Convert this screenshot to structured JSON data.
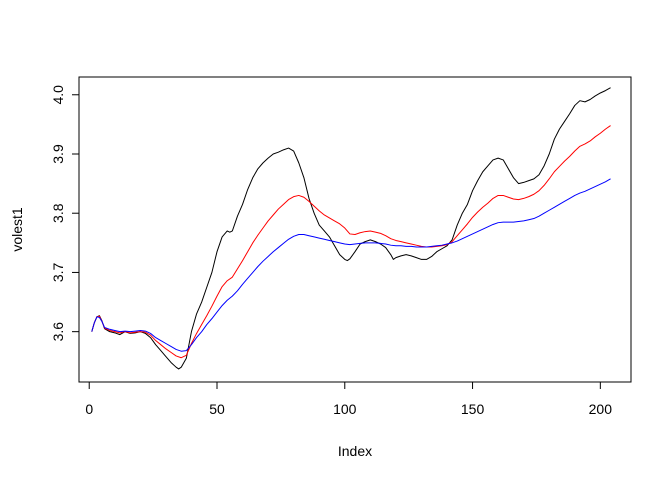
{
  "chart_data": {
    "type": "line",
    "title": "",
    "xlabel": "Index",
    "ylabel": "volest1",
    "xlim": [
      -4,
      212
    ],
    "ylim": [
      3.515,
      4.03
    ],
    "x_ticks": [
      0,
      50,
      100,
      150,
      200
    ],
    "x_tick_labels": [
      "0",
      "50",
      "100",
      "150",
      "200"
    ],
    "y_ticks": [
      3.6,
      3.7,
      3.8,
      3.9,
      4.0
    ],
    "y_tick_labels": [
      "3.6",
      "3.7",
      "3.8",
      "3.9",
      "4.0"
    ],
    "grid": false,
    "legend": "none",
    "series": [
      {
        "color": "#000000",
        "points": [
          [
            1,
            3.6
          ],
          [
            2,
            3.615
          ],
          [
            3,
            3.625
          ],
          [
            4,
            3.627
          ],
          [
            5,
            3.618
          ],
          [
            6,
            3.605
          ],
          [
            8,
            3.6
          ],
          [
            10,
            3.598
          ],
          [
            12,
            3.595
          ],
          [
            14,
            3.6
          ],
          [
            16,
            3.597
          ],
          [
            18,
            3.598
          ],
          [
            20,
            3.6
          ],
          [
            22,
            3.597
          ],
          [
            24,
            3.59
          ],
          [
            26,
            3.578
          ],
          [
            28,
            3.568
          ],
          [
            30,
            3.558
          ],
          [
            32,
            3.548
          ],
          [
            34,
            3.54
          ],
          [
            35,
            3.537
          ],
          [
            36,
            3.54
          ],
          [
            38,
            3.555
          ],
          [
            40,
            3.6
          ],
          [
            42,
            3.63
          ],
          [
            44,
            3.65
          ],
          [
            46,
            3.675
          ],
          [
            48,
            3.7
          ],
          [
            50,
            3.735
          ],
          [
            52,
            3.76
          ],
          [
            54,
            3.77
          ],
          [
            55,
            3.768
          ],
          [
            56,
            3.77
          ],
          [
            58,
            3.795
          ],
          [
            60,
            3.815
          ],
          [
            62,
            3.84
          ],
          [
            64,
            3.86
          ],
          [
            66,
            3.875
          ],
          [
            68,
            3.885
          ],
          [
            70,
            3.893
          ],
          [
            72,
            3.9
          ],
          [
            74,
            3.903
          ],
          [
            76,
            3.907
          ],
          [
            78,
            3.91
          ],
          [
            80,
            3.905
          ],
          [
            82,
            3.885
          ],
          [
            84,
            3.86
          ],
          [
            86,
            3.825
          ],
          [
            88,
            3.8
          ],
          [
            90,
            3.78
          ],
          [
            92,
            3.77
          ],
          [
            94,
            3.76
          ],
          [
            96,
            3.745
          ],
          [
            98,
            3.73
          ],
          [
            100,
            3.722
          ],
          [
            101,
            3.72
          ],
          [
            102,
            3.723
          ],
          [
            104,
            3.735
          ],
          [
            106,
            3.748
          ],
          [
            108,
            3.752
          ],
          [
            110,
            3.755
          ],
          [
            112,
            3.752
          ],
          [
            114,
            3.748
          ],
          [
            116,
            3.742
          ],
          [
            118,
            3.73
          ],
          [
            119,
            3.722
          ],
          [
            120,
            3.725
          ],
          [
            122,
            3.728
          ],
          [
            124,
            3.73
          ],
          [
            126,
            3.728
          ],
          [
            128,
            3.725
          ],
          [
            130,
            3.722
          ],
          [
            132,
            3.722
          ],
          [
            134,
            3.727
          ],
          [
            136,
            3.735
          ],
          [
            138,
            3.74
          ],
          [
            140,
            3.745
          ],
          [
            142,
            3.755
          ],
          [
            144,
            3.78
          ],
          [
            146,
            3.8
          ],
          [
            148,
            3.815
          ],
          [
            150,
            3.838
          ],
          [
            152,
            3.855
          ],
          [
            154,
            3.87
          ],
          [
            156,
            3.88
          ],
          [
            158,
            3.89
          ],
          [
            160,
            3.893
          ],
          [
            162,
            3.89
          ],
          [
            164,
            3.875
          ],
          [
            166,
            3.86
          ],
          [
            168,
            3.85
          ],
          [
            170,
            3.852
          ],
          [
            172,
            3.855
          ],
          [
            174,
            3.858
          ],
          [
            176,
            3.865
          ],
          [
            178,
            3.88
          ],
          [
            180,
            3.9
          ],
          [
            182,
            3.925
          ],
          [
            184,
            3.942
          ],
          [
            186,
            3.955
          ],
          [
            188,
            3.968
          ],
          [
            190,
            3.982
          ],
          [
            192,
            3.99
          ],
          [
            194,
            3.988
          ],
          [
            196,
            3.992
          ],
          [
            198,
            3.998
          ],
          [
            200,
            4.003
          ],
          [
            202,
            4.007
          ],
          [
            204,
            4.012
          ]
        ]
      },
      {
        "color": "#ff0000",
        "points": [
          [
            1,
            3.6
          ],
          [
            2,
            3.615
          ],
          [
            3,
            3.625
          ],
          [
            4,
            3.626
          ],
          [
            5,
            3.617
          ],
          [
            6,
            3.606
          ],
          [
            8,
            3.602
          ],
          [
            10,
            3.6
          ],
          [
            12,
            3.598
          ],
          [
            14,
            3.6
          ],
          [
            16,
            3.598
          ],
          [
            18,
            3.599
          ],
          [
            20,
            3.6
          ],
          [
            22,
            3.599
          ],
          [
            24,
            3.594
          ],
          [
            26,
            3.585
          ],
          [
            28,
            3.578
          ],
          [
            30,
            3.571
          ],
          [
            32,
            3.565
          ],
          [
            34,
            3.559
          ],
          [
            36,
            3.556
          ],
          [
            38,
            3.56
          ],
          [
            40,
            3.58
          ],
          [
            42,
            3.597
          ],
          [
            44,
            3.612
          ],
          [
            46,
            3.627
          ],
          [
            48,
            3.643
          ],
          [
            50,
            3.66
          ],
          [
            52,
            3.676
          ],
          [
            54,
            3.686
          ],
          [
            56,
            3.692
          ],
          [
            58,
            3.706
          ],
          [
            60,
            3.72
          ],
          [
            62,
            3.735
          ],
          [
            64,
            3.75
          ],
          [
            66,
            3.763
          ],
          [
            68,
            3.775
          ],
          [
            70,
            3.787
          ],
          [
            72,
            3.797
          ],
          [
            74,
            3.807
          ],
          [
            76,
            3.815
          ],
          [
            78,
            3.823
          ],
          [
            80,
            3.828
          ],
          [
            82,
            3.83
          ],
          [
            84,
            3.827
          ],
          [
            86,
            3.82
          ],
          [
            88,
            3.812
          ],
          [
            90,
            3.804
          ],
          [
            92,
            3.797
          ],
          [
            94,
            3.792
          ],
          [
            96,
            3.787
          ],
          [
            98,
            3.782
          ],
          [
            100,
            3.775
          ],
          [
            102,
            3.765
          ],
          [
            104,
            3.764
          ],
          [
            106,
            3.767
          ],
          [
            108,
            3.769
          ],
          [
            110,
            3.77
          ],
          [
            112,
            3.768
          ],
          [
            114,
            3.766
          ],
          [
            116,
            3.762
          ],
          [
            118,
            3.757
          ],
          [
            120,
            3.754
          ],
          [
            122,
            3.752
          ],
          [
            124,
            3.75
          ],
          [
            126,
            3.748
          ],
          [
            128,
            3.746
          ],
          [
            130,
            3.744
          ],
          [
            132,
            3.743
          ],
          [
            134,
            3.743
          ],
          [
            136,
            3.744
          ],
          [
            138,
            3.745
          ],
          [
            140,
            3.747
          ],
          [
            142,
            3.752
          ],
          [
            144,
            3.762
          ],
          [
            146,
            3.772
          ],
          [
            148,
            3.782
          ],
          [
            150,
            3.793
          ],
          [
            152,
            3.802
          ],
          [
            154,
            3.81
          ],
          [
            156,
            3.817
          ],
          [
            158,
            3.825
          ],
          [
            160,
            3.83
          ],
          [
            162,
            3.83
          ],
          [
            164,
            3.827
          ],
          [
            166,
            3.824
          ],
          [
            168,
            3.823
          ],
          [
            170,
            3.825
          ],
          [
            172,
            3.828
          ],
          [
            174,
            3.832
          ],
          [
            176,
            3.838
          ],
          [
            178,
            3.847
          ],
          [
            180,
            3.858
          ],
          [
            182,
            3.87
          ],
          [
            184,
            3.879
          ],
          [
            186,
            3.888
          ],
          [
            188,
            3.896
          ],
          [
            190,
            3.905
          ],
          [
            192,
            3.913
          ],
          [
            194,
            3.917
          ],
          [
            196,
            3.922
          ],
          [
            198,
            3.929
          ],
          [
            200,
            3.935
          ],
          [
            202,
            3.942
          ],
          [
            204,
            3.948
          ]
        ]
      },
      {
        "color": "#0000ff",
        "points": [
          [
            1,
            3.6
          ],
          [
            2,
            3.615
          ],
          [
            3,
            3.625
          ],
          [
            4,
            3.624
          ],
          [
            5,
            3.617
          ],
          [
            6,
            3.607
          ],
          [
            8,
            3.604
          ],
          [
            10,
            3.602
          ],
          [
            12,
            3.6
          ],
          [
            14,
            3.601
          ],
          [
            16,
            3.6
          ],
          [
            18,
            3.601
          ],
          [
            20,
            3.602
          ],
          [
            22,
            3.601
          ],
          [
            24,
            3.597
          ],
          [
            26,
            3.59
          ],
          [
            28,
            3.585
          ],
          [
            30,
            3.58
          ],
          [
            32,
            3.575
          ],
          [
            34,
            3.57
          ],
          [
            36,
            3.567
          ],
          [
            38,
            3.568
          ],
          [
            40,
            3.578
          ],
          [
            42,
            3.59
          ],
          [
            44,
            3.6
          ],
          [
            46,
            3.612
          ],
          [
            48,
            3.622
          ],
          [
            50,
            3.633
          ],
          [
            52,
            3.644
          ],
          [
            54,
            3.653
          ],
          [
            56,
            3.66
          ],
          [
            58,
            3.669
          ],
          [
            60,
            3.68
          ],
          [
            62,
            3.69
          ],
          [
            64,
            3.7
          ],
          [
            66,
            3.71
          ],
          [
            68,
            3.719
          ],
          [
            70,
            3.727
          ],
          [
            72,
            3.735
          ],
          [
            74,
            3.742
          ],
          [
            76,
            3.749
          ],
          [
            78,
            3.756
          ],
          [
            80,
            3.761
          ],
          [
            82,
            3.764
          ],
          [
            84,
            3.764
          ],
          [
            86,
            3.762
          ],
          [
            88,
            3.76
          ],
          [
            90,
            3.758
          ],
          [
            92,
            3.756
          ],
          [
            94,
            3.754
          ],
          [
            96,
            3.752
          ],
          [
            98,
            3.75
          ],
          [
            100,
            3.748
          ],
          [
            102,
            3.747
          ],
          [
            104,
            3.748
          ],
          [
            106,
            3.749
          ],
          [
            108,
            3.75
          ],
          [
            110,
            3.75
          ],
          [
            112,
            3.75
          ],
          [
            114,
            3.749
          ],
          [
            116,
            3.748
          ],
          [
            118,
            3.746
          ],
          [
            120,
            3.745
          ],
          [
            122,
            3.745
          ],
          [
            124,
            3.744
          ],
          [
            126,
            3.744
          ],
          [
            128,
            3.743
          ],
          [
            130,
            3.743
          ],
          [
            132,
            3.743
          ],
          [
            134,
            3.744
          ],
          [
            136,
            3.745
          ],
          [
            138,
            3.746
          ],
          [
            140,
            3.748
          ],
          [
            142,
            3.75
          ],
          [
            144,
            3.753
          ],
          [
            146,
            3.757
          ],
          [
            148,
            3.761
          ],
          [
            150,
            3.765
          ],
          [
            152,
            3.769
          ],
          [
            154,
            3.773
          ],
          [
            156,
            3.777
          ],
          [
            158,
            3.781
          ],
          [
            160,
            3.784
          ],
          [
            162,
            3.785
          ],
          [
            164,
            3.785
          ],
          [
            166,
            3.785
          ],
          [
            168,
            3.786
          ],
          [
            170,
            3.787
          ],
          [
            172,
            3.789
          ],
          [
            174,
            3.791
          ],
          [
            176,
            3.795
          ],
          [
            178,
            3.8
          ],
          [
            180,
            3.805
          ],
          [
            182,
            3.81
          ],
          [
            184,
            3.815
          ],
          [
            186,
            3.82
          ],
          [
            188,
            3.825
          ],
          [
            190,
            3.83
          ],
          [
            192,
            3.834
          ],
          [
            194,
            3.837
          ],
          [
            196,
            3.841
          ],
          [
            198,
            3.845
          ],
          [
            200,
            3.849
          ],
          [
            202,
            3.853
          ],
          [
            204,
            3.858
          ]
        ]
      }
    ]
  }
}
